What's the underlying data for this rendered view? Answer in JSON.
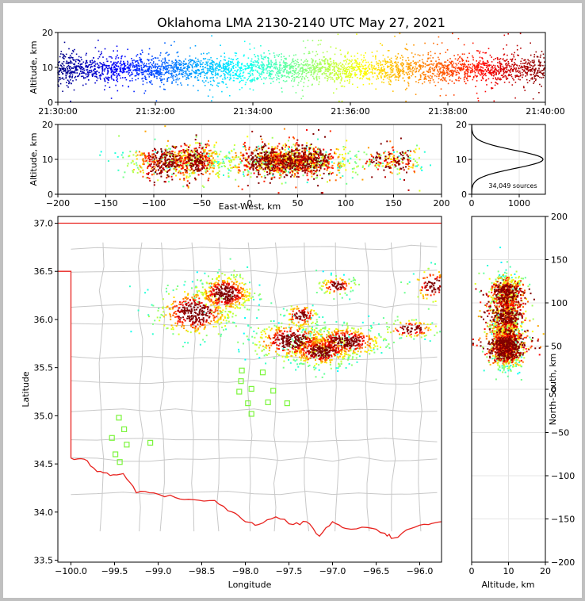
{
  "title": "Oklahoma LMA 2130-2140 UTC May 27, 2021",
  "source_count": "34,049 sources",
  "colors": {
    "state_border": "#e8231f",
    "county_line": "#c8c8c8",
    "station": "#7cf53d",
    "frame": "#c0c0c0"
  },
  "chart_data": [
    {
      "panel": "time-height",
      "type": "scatter",
      "xlabel": "",
      "ylabel": "Altitude, km",
      "xticks": [
        "21:30:00",
        "21:32:00",
        "21:34:00",
        "21:36:00",
        "21:38:00",
        "21:40:00"
      ],
      "yticks": [
        "0",
        "10",
        "20"
      ],
      "xlim": [
        0,
        600
      ],
      "ylim": [
        0,
        20
      ],
      "color_by": "time",
      "altitude_mode_km": 9.5
    },
    {
      "panel": "east-west-altitude",
      "type": "scatter",
      "xlabel": "East-West, km",
      "ylabel": "Altitude, km",
      "xticks": [
        "−200",
        "−150",
        "−100",
        "−50",
        "0",
        "50",
        "100",
        "150",
        "200"
      ],
      "yticks": [
        "0",
        "10",
        "20"
      ],
      "xlim": [
        -200,
        200
      ],
      "ylim": [
        0,
        20
      ]
    },
    {
      "panel": "altitude-histogram",
      "type": "line",
      "xticks": [
        "0",
        "1000"
      ],
      "yticks": [
        "0",
        "10",
        "20"
      ],
      "xlim": [
        0,
        1550
      ],
      "ylim": [
        0,
        20
      ],
      "peak": {
        "altitude_km": 10,
        "count": 1500
      }
    },
    {
      "panel": "plan-view",
      "type": "scatter",
      "xlabel": "Longitude",
      "ylabel": "Latitude",
      "xticks": [
        "−100.0",
        "−99.5",
        "−99.0",
        "−98.5",
        "−98.0",
        "−97.5",
        "−97.0",
        "−96.5",
        "−96.0"
      ],
      "yticks": [
        "33.5",
        "34.0",
        "34.5",
        "35.0",
        "35.5",
        "36.0",
        "36.5",
        "37.0"
      ],
      "xlim": [
        -100.15,
        -95.75
      ],
      "ylim": [
        33.48,
        37.07
      ],
      "stations": [
        {
          "lon": -98.04,
          "lat": 35.47
        },
        {
          "lon": -97.8,
          "lat": 35.45
        },
        {
          "lon": -98.05,
          "lat": 35.36
        },
        {
          "lon": -97.93,
          "lat": 35.28
        },
        {
          "lon": -97.68,
          "lat": 35.26
        },
        {
          "lon": -98.07,
          "lat": 35.25
        },
        {
          "lon": -97.97,
          "lat": 35.13
        },
        {
          "lon": -97.74,
          "lat": 35.14
        },
        {
          "lon": -97.52,
          "lat": 35.13
        },
        {
          "lon": -97.93,
          "lat": 35.02
        },
        {
          "lon": -99.45,
          "lat": 34.98
        },
        {
          "lon": -99.39,
          "lat": 34.86
        },
        {
          "lon": -99.53,
          "lat": 34.77
        },
        {
          "lon": -99.36,
          "lat": 34.7
        },
        {
          "lon": -99.09,
          "lat": 34.72
        },
        {
          "lon": -99.49,
          "lat": 34.6
        },
        {
          "lon": -99.44,
          "lat": 34.52
        }
      ],
      "clusters": [
        {
          "lon": -98.58,
          "lat": 36.07,
          "spread_lon": 0.22,
          "spread_lat": 0.13
        },
        {
          "lon": -98.23,
          "lat": 36.27,
          "spread_lon": 0.16,
          "spread_lat": 0.1
        },
        {
          "lon": -97.47,
          "lat": 35.78,
          "spread_lon": 0.22,
          "spread_lat": 0.1
        },
        {
          "lon": -97.13,
          "lat": 35.67,
          "spread_lon": 0.18,
          "spread_lat": 0.08
        },
        {
          "lon": -96.85,
          "lat": 35.77,
          "spread_lon": 0.22,
          "spread_lat": 0.08
        },
        {
          "lon": -97.36,
          "lat": 36.04,
          "spread_lon": 0.1,
          "spread_lat": 0.06
        },
        {
          "lon": -96.95,
          "lat": 36.35,
          "spread_lon": 0.1,
          "spread_lat": 0.05
        },
        {
          "lon": -95.85,
          "lat": 36.35,
          "spread_lon": 0.12,
          "spread_lat": 0.1
        },
        {
          "lon": -96.1,
          "lat": 35.9,
          "spread_lon": 0.15,
          "spread_lat": 0.05
        }
      ]
    },
    {
      "panel": "north-south-altitude",
      "type": "scatter",
      "xlabel": "Altitude, km",
      "ylabel": "North-South, km",
      "xticks": [
        "0",
        "10",
        "20"
      ],
      "yticks": [
        "−200",
        "−150",
        "−100",
        "−50",
        "0",
        "50",
        "100",
        "150",
        "200"
      ],
      "xlim": [
        0,
        20
      ],
      "ylim": [
        -200,
        200
      ]
    }
  ]
}
